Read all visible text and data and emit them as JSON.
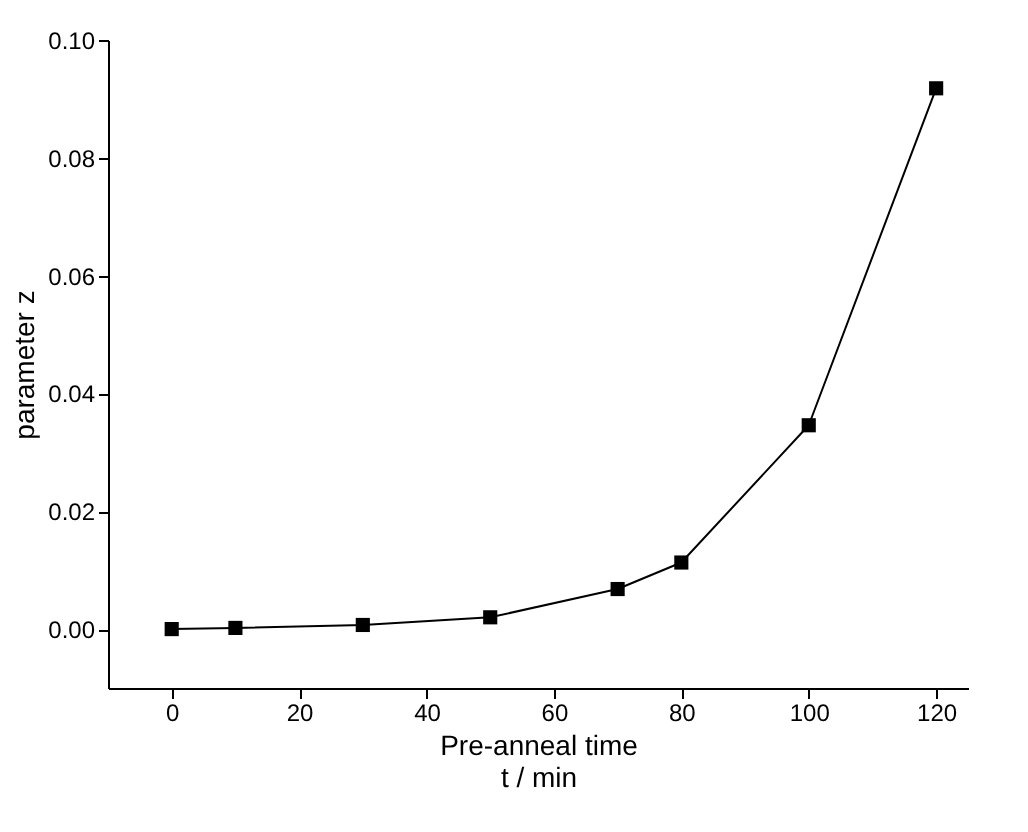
{
  "chart_data": {
    "type": "line",
    "xlabel": "Pre-anneal time\nt / min",
    "ylabel": "parameter z",
    "x": [
      0,
      10,
      30,
      50,
      70,
      80,
      100,
      120
    ],
    "series": [
      {
        "color": "#000000",
        "values": [
          0,
          0.0002,
          0.0007,
          0.002,
          0.0068,
          0.0113,
          0.0346,
          0.0918
        ]
      }
    ],
    "xlim": [
      -10,
      125
    ],
    "xticks": [
      0,
      20,
      40,
      60,
      80,
      100,
      120
    ],
    "ylim": [
      -0.01,
      0.1
    ],
    "yticks": [
      {
        "value": 0,
        "label": "0.00"
      },
      {
        "value": 0.02,
        "label": "0.02"
      },
      {
        "value": 0.04,
        "label": "0.04"
      },
      {
        "value": 0.06,
        "label": "0.06"
      },
      {
        "value": 0.08,
        "label": "0.08"
      },
      {
        "value": 0.1,
        "label": "0.10"
      }
    ],
    "marker": "square"
  }
}
